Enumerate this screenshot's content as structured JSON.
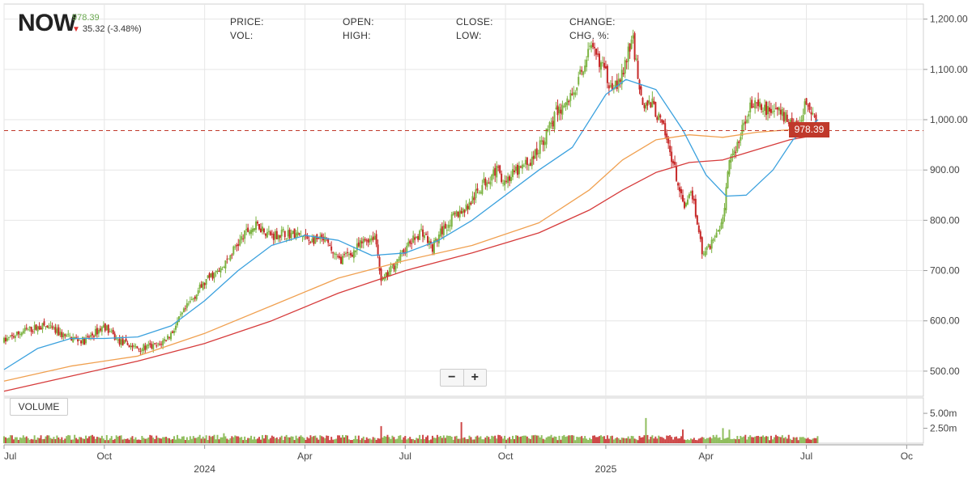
{
  "header": {
    "ticker": "NOW",
    "last_price": "978.39",
    "change": "35.32 (-3.48%)",
    "change_direction": "down",
    "fields": {
      "price_label": "PRICE:",
      "vol_label": "VOL:",
      "open_label": "OPEN:",
      "high_label": "HIGH:",
      "close_label": "CLOSE:",
      "low_label": "LOW:",
      "change_label": "CHANGE:",
      "chg_pct_label": "CHG. %:"
    }
  },
  "controls": {
    "zoom_out": "−",
    "zoom_in": "+",
    "volume_button": "VOLUME"
  },
  "price_tag": "978.39",
  "colors": {
    "up": "#7cb342",
    "down": "#c62828",
    "ma_short": "#3ba1de",
    "ma_mid": "#f0a050",
    "ma_long": "#d63b3b",
    "last_line": "#c0392b",
    "grid": "#e6e6e6"
  },
  "chart_data": {
    "type": "candlestick",
    "ylim": [
      450,
      1230
    ],
    "y_ticks": [
      "1,200.00",
      "1,100.00",
      "1,000.00",
      "900.00",
      "800.00",
      "700.00",
      "600.00",
      "500.00"
    ],
    "y_tick_values": [
      1200,
      1100,
      1000,
      900,
      800,
      700,
      600,
      500
    ],
    "volume_ticks": [
      "5.00m",
      "2.50m"
    ],
    "volume_tick_values": [
      5.0,
      2.5
    ],
    "x_ticks": [
      "Jul",
      "Oct",
      "2024",
      "Apr",
      "Jul",
      "Oct",
      "2025",
      "Apr",
      "Jul",
      "Oc"
    ],
    "x_tick_months": [
      0,
      3,
      6,
      9,
      12,
      15,
      18,
      21,
      24,
      27
    ],
    "x_range_months": [
      0,
      27.5
    ],
    "last_month": 24.35,
    "last_close": 978.39,
    "price_path": [
      [
        0,
        560
      ],
      [
        0.6,
        580
      ],
      [
        1.2,
        590
      ],
      [
        1.8,
        570
      ],
      [
        2.4,
        560
      ],
      [
        3.0,
        590
      ],
      [
        3.4,
        560
      ],
      [
        4.0,
        545
      ],
      [
        4.6,
        550
      ],
      [
        5.0,
        575
      ],
      [
        5.4,
        620
      ],
      [
        5.8,
        660
      ],
      [
        6.2,
        690
      ],
      [
        6.5,
        700
      ],
      [
        6.9,
        745
      ],
      [
        7.3,
        780
      ],
      [
        7.6,
        790
      ],
      [
        8.0,
        770
      ],
      [
        8.4,
        775
      ],
      [
        8.8,
        770
      ],
      [
        9.2,
        760
      ],
      [
        9.6,
        760
      ],
      [
        10.0,
        720
      ],
      [
        10.4,
        735
      ],
      [
        10.8,
        760
      ],
      [
        11.1,
        770
      ],
      [
        11.3,
        675
      ],
      [
        11.7,
        715
      ],
      [
        12.1,
        750
      ],
      [
        12.5,
        780
      ],
      [
        12.8,
        745
      ],
      [
        13.1,
        780
      ],
      [
        13.5,
        810
      ],
      [
        13.9,
        830
      ],
      [
        14.3,
        870
      ],
      [
        14.7,
        900
      ],
      [
        15.0,
        880
      ],
      [
        15.4,
        900
      ],
      [
        15.8,
        920
      ],
      [
        16.2,
        970
      ],
      [
        16.5,
        1010
      ],
      [
        16.9,
        1040
      ],
      [
        17.2,
        1080
      ],
      [
        17.5,
        1140
      ],
      [
        17.8,
        1120
      ],
      [
        18.1,
        1075
      ],
      [
        18.4,
        1070
      ],
      [
        18.8,
        1160
      ],
      [
        19.1,
        1030
      ],
      [
        19.4,
        1030
      ],
      [
        19.7,
        985
      ],
      [
        20.0,
        920
      ],
      [
        20.3,
        830
      ],
      [
        20.6,
        850
      ],
      [
        20.9,
        730
      ],
      [
        21.2,
        760
      ],
      [
        21.5,
        800
      ],
      [
        21.7,
        915
      ],
      [
        22.0,
        960
      ],
      [
        22.3,
        1030
      ],
      [
        22.7,
        1020
      ],
      [
        23.1,
        1020
      ],
      [
        23.5,
        1000
      ],
      [
        23.8,
        990
      ],
      [
        24.0,
        1035
      ],
      [
        24.2,
        1010
      ],
      [
        24.35,
        978
      ]
    ],
    "ma_short_path": [
      [
        0,
        503
      ],
      [
        1,
        545
      ],
      [
        2,
        565
      ],
      [
        3,
        565
      ],
      [
        4,
        568
      ],
      [
        5,
        590
      ],
      [
        6,
        640
      ],
      [
        7,
        700
      ],
      [
        8,
        750
      ],
      [
        9,
        770
      ],
      [
        10,
        760
      ],
      [
        11,
        730
      ],
      [
        12,
        735
      ],
      [
        13,
        760
      ],
      [
        14,
        800
      ],
      [
        15,
        850
      ],
      [
        16,
        900
      ],
      [
        17,
        945
      ],
      [
        18,
        1050
      ],
      [
        18.6,
        1080
      ],
      [
        19.5,
        1060
      ],
      [
        20.3,
        980
      ],
      [
        21.0,
        890
      ],
      [
        21.6,
        848
      ],
      [
        22.2,
        850
      ],
      [
        23.0,
        900
      ],
      [
        23.6,
        960
      ],
      [
        24.35,
        1000
      ]
    ],
    "ma_mid_path": [
      [
        0,
        480
      ],
      [
        2,
        510
      ],
      [
        4,
        530
      ],
      [
        6,
        575
      ],
      [
        8,
        630
      ],
      [
        10,
        685
      ],
      [
        12,
        720
      ],
      [
        14,
        750
      ],
      [
        16,
        795
      ],
      [
        17.5,
        860
      ],
      [
        18.5,
        920
      ],
      [
        19.5,
        960
      ],
      [
        20.5,
        970
      ],
      [
        21.5,
        965
      ],
      [
        22.5,
        975
      ],
      [
        23.5,
        980
      ],
      [
        24.35,
        980
      ]
    ],
    "ma_long_path": [
      [
        0,
        460
      ],
      [
        2,
        490
      ],
      [
        4,
        520
      ],
      [
        6,
        555
      ],
      [
        8,
        600
      ],
      [
        10,
        655
      ],
      [
        12,
        700
      ],
      [
        14,
        735
      ],
      [
        16,
        775
      ],
      [
        17.5,
        820
      ],
      [
        18.5,
        860
      ],
      [
        19.5,
        895
      ],
      [
        20.5,
        915
      ],
      [
        21.5,
        920
      ],
      [
        22.5,
        940
      ],
      [
        23.5,
        960
      ],
      [
        24.35,
        970
      ]
    ],
    "volume_spikes": [
      [
        6.6,
        1.4
      ],
      [
        11.3,
        2.3
      ],
      [
        13.7,
        3.5
      ],
      [
        19.2,
        4.0
      ],
      [
        20.3,
        1.8
      ],
      [
        21.5,
        2.5
      ],
      [
        21.7,
        1.9
      ]
    ]
  }
}
